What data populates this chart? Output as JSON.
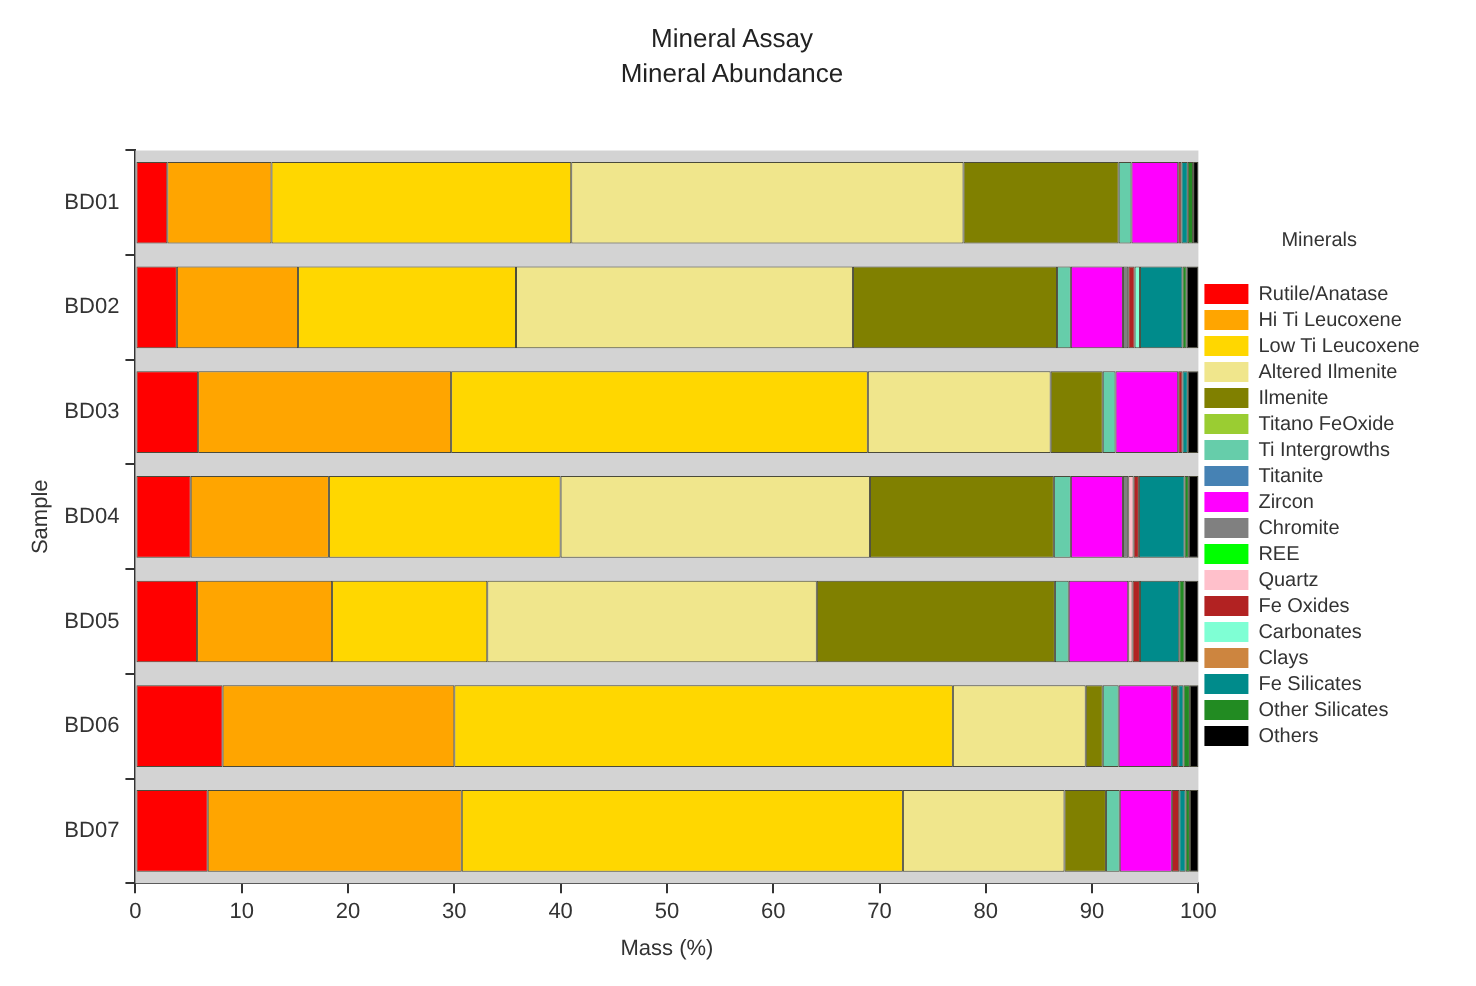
{
  "chart_data": {
    "type": "bar",
    "orientation": "horizontal",
    "stacked": true,
    "title": "Mineral Assay",
    "subtitle": "Mineral Abundance",
    "xlabel": "Mass (%)",
    "ylabel": "Sample",
    "legend_title": "Minerals",
    "legend": "right",
    "grid": false,
    "categories": [
      "BD01",
      "BD02",
      "BD03",
      "BD04",
      "BD05",
      "BD06",
      "BD07"
    ],
    "xlim": [
      0,
      100
    ],
    "xticks": [
      0,
      10,
      20,
      30,
      40,
      50,
      60,
      70,
      80,
      90,
      100
    ],
    "series": [
      {
        "name": "Rutile/Anatase",
        "color": "#ff0000",
        "values": [
          3.0,
          3.9,
          5.9,
          5.2,
          5.8,
          8.2,
          6.8
        ]
      },
      {
        "name": "Hi Ti Leucoxene",
        "color": "#ffa500",
        "values": [
          9.8,
          11.4,
          23.8,
          13.0,
          12.7,
          21.8,
          23.9
        ]
      },
      {
        "name": "Low Ti Leucoxene",
        "color": "#ffd700",
        "values": [
          28.2,
          20.5,
          39.2,
          21.8,
          14.6,
          46.9,
          41.5
        ]
      },
      {
        "name": "Altered Ilmenite",
        "color": "#f0e68c",
        "values": [
          36.9,
          31.7,
          17.2,
          29.1,
          31.0,
          12.5,
          15.2
        ]
      },
      {
        "name": "Ilmenite",
        "color": "#808000",
        "values": [
          14.6,
          19.2,
          4.9,
          17.3,
          22.4,
          1.6,
          3.9
        ]
      },
      {
        "name": "Titano FeOxide",
        "color": "#9acd32",
        "values": [
          0,
          0,
          0,
          0,
          0,
          0,
          0
        ]
      },
      {
        "name": "Ti Intergrowths",
        "color": "#66cdaa",
        "values": [
          1.2,
          1.3,
          1.2,
          1.6,
          1.3,
          1.5,
          1.3
        ]
      },
      {
        "name": "Titanite",
        "color": "#4682b4",
        "values": [
          0,
          0,
          0,
          0,
          0,
          0,
          0
        ]
      },
      {
        "name": "Zircon",
        "color": "#ff00ff",
        "values": [
          4.4,
          4.9,
          5.9,
          4.9,
          5.6,
          5.0,
          4.9
        ]
      },
      {
        "name": "Chromite",
        "color": "#808080",
        "values": [
          0,
          0.5,
          0,
          0.5,
          0,
          0,
          0
        ]
      },
      {
        "name": "REE",
        "color": "#00ff00",
        "values": [
          0,
          0,
          0,
          0,
          0,
          0,
          0
        ]
      },
      {
        "name": "Quartz",
        "color": "#ffc0cb",
        "values": [
          0,
          0,
          0,
          0.5,
          0.4,
          0,
          0
        ]
      },
      {
        "name": "Fe Oxides",
        "color": "#b22222",
        "values": [
          0.3,
          0.6,
          0.4,
          0.5,
          0.7,
          0.6,
          0.7
        ]
      },
      {
        "name": "Carbonates",
        "color": "#7fffd4",
        "values": [
          0,
          0.5,
          0,
          0,
          0,
          0,
          0
        ]
      },
      {
        "name": "Clays",
        "color": "#cd853f",
        "values": [
          0,
          0,
          0,
          0,
          0,
          0,
          0
        ]
      },
      {
        "name": "Fe Silicates",
        "color": "#008b8b",
        "values": [
          0.6,
          4.0,
          0.5,
          4.3,
          3.7,
          0.5,
          0.6
        ]
      },
      {
        "name": "Other Silicates",
        "color": "#228b22",
        "values": [
          0.5,
          0.4,
          0,
          0.4,
          0.5,
          0.6,
          0.4
        ]
      },
      {
        "name": "Others",
        "color": "#000000",
        "values": [
          0.5,
          1.1,
          1.0,
          0.9,
          1.3,
          0.8,
          0.8
        ]
      }
    ]
  }
}
